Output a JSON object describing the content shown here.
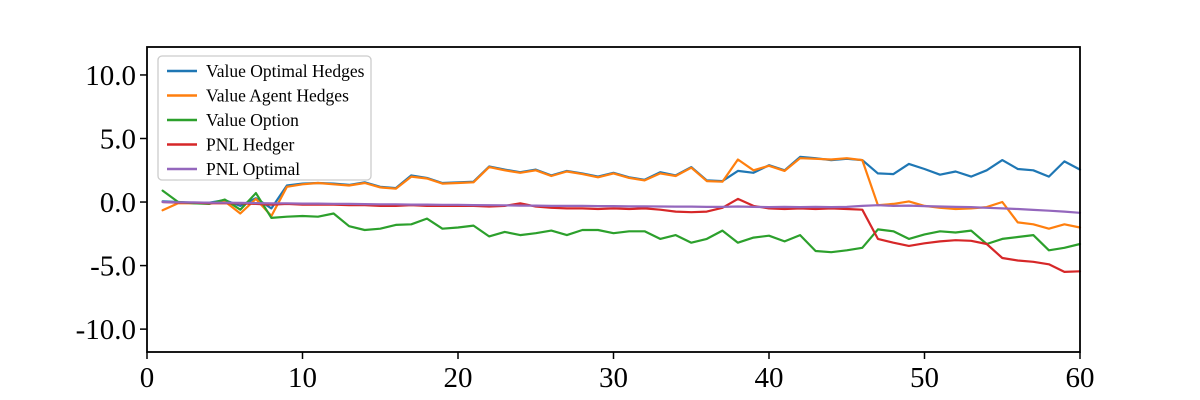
{
  "chart_data": {
    "type": "line",
    "title": "",
    "xlabel": "",
    "ylabel": "",
    "x_start": 1,
    "x_step": 1,
    "axes": {
      "xlim": [
        0,
        60
      ],
      "ylim": [
        -11.8,
        12.2
      ],
      "xticks": [
        0,
        10,
        20,
        30,
        40,
        50,
        60
      ],
      "xtick_labels": [
        "0",
        "10",
        "20",
        "30",
        "40",
        "50",
        "60"
      ],
      "yticks": [
        10,
        5,
        0,
        -5,
        -10
      ],
      "ytick_labels": [
        "10.0",
        "5.0",
        "0.0",
        "-5.0",
        "-10.0"
      ],
      "grid": false
    },
    "legend": {
      "position": "upper-left",
      "entries": [
        "Value Optimal Hedges",
        "Value Agent Hedges",
        "Value Option",
        "PNL Hedger",
        "PNL Optimal"
      ]
    },
    "series": [
      {
        "name": "Value Optimal Hedges",
        "color": "#1f77b4",
        "values": [
          0.05,
          0.0,
          -0.05,
          -0.05,
          0.15,
          -0.3,
          0.3,
          -0.5,
          1.3,
          1.45,
          1.5,
          1.45,
          1.35,
          1.55,
          1.2,
          1.1,
          2.1,
          1.9,
          1.5,
          1.55,
          1.6,
          2.8,
          2.55,
          2.35,
          2.55,
          2.1,
          2.45,
          2.25,
          2.0,
          2.3,
          1.95,
          1.75,
          2.35,
          2.1,
          2.75,
          1.7,
          1.65,
          2.45,
          2.3,
          2.9,
          2.5,
          3.55,
          3.45,
          3.3,
          3.4,
          3.3,
          2.25,
          2.2,
          3.0,
          2.6,
          2.15,
          2.4,
          2.0,
          2.5,
          3.3,
          2.6,
          2.5,
          2.0,
          3.2,
          2.55
        ]
      },
      {
        "name": "Value Agent Hedges",
        "color": "#ff7f0e",
        "values": [
          -0.65,
          -0.1,
          -0.1,
          -0.1,
          0.05,
          -0.9,
          0.25,
          -1.1,
          1.2,
          1.4,
          1.5,
          1.4,
          1.3,
          1.5,
          1.15,
          1.05,
          2.0,
          1.85,
          1.45,
          1.5,
          1.55,
          2.75,
          2.5,
          2.3,
          2.5,
          2.05,
          2.4,
          2.2,
          1.95,
          2.25,
          1.9,
          1.7,
          2.25,
          2.05,
          2.7,
          1.65,
          1.6,
          3.35,
          2.5,
          2.85,
          2.45,
          3.45,
          3.4,
          3.35,
          3.45,
          3.3,
          -0.25,
          -0.15,
          0.05,
          -0.3,
          -0.45,
          -0.55,
          -0.5,
          -0.4,
          0.0,
          -1.6,
          -1.75,
          -2.1,
          -1.75,
          -2.0
        ]
      },
      {
        "name": "Value Option",
        "color": "#2ca02c",
        "values": [
          0.9,
          0.0,
          -0.1,
          -0.15,
          0.2,
          -0.6,
          0.7,
          -1.25,
          -1.15,
          -1.1,
          -1.15,
          -0.9,
          -1.9,
          -2.2,
          -2.1,
          -1.8,
          -1.75,
          -1.3,
          -2.1,
          -2.0,
          -1.85,
          -2.7,
          -2.35,
          -2.6,
          -2.45,
          -2.25,
          -2.6,
          -2.2,
          -2.2,
          -2.45,
          -2.3,
          -2.3,
          -2.9,
          -2.6,
          -3.2,
          -2.9,
          -2.25,
          -3.2,
          -2.8,
          -2.65,
          -3.1,
          -2.6,
          -3.85,
          -3.95,
          -3.8,
          -3.6,
          -2.15,
          -2.3,
          -2.9,
          -2.55,
          -2.3,
          -2.4,
          -2.25,
          -3.3,
          -2.9,
          -2.75,
          -2.6,
          -3.8,
          -3.6,
          -3.3
        ]
      },
      {
        "name": "PNL Hedger",
        "color": "#d62728",
        "values": [
          0.0,
          -0.05,
          -0.05,
          -0.1,
          -0.1,
          -0.1,
          -0.15,
          -0.2,
          -0.15,
          -0.2,
          -0.2,
          -0.2,
          -0.25,
          -0.25,
          -0.3,
          -0.3,
          -0.25,
          -0.3,
          -0.3,
          -0.3,
          -0.3,
          -0.35,
          -0.3,
          -0.1,
          -0.35,
          -0.45,
          -0.5,
          -0.5,
          -0.55,
          -0.5,
          -0.55,
          -0.5,
          -0.6,
          -0.75,
          -0.8,
          -0.75,
          -0.45,
          0.25,
          -0.3,
          -0.5,
          -0.55,
          -0.5,
          -0.55,
          -0.5,
          -0.55,
          -0.6,
          -2.9,
          -3.2,
          -3.45,
          -3.25,
          -3.1,
          -3.0,
          -3.05,
          -3.3,
          -4.4,
          -4.6,
          -4.7,
          -4.9,
          -5.5,
          -5.45
        ]
      },
      {
        "name": "PNL Optimal",
        "color": "#9467bd",
        "values": [
          0.0,
          -0.02,
          -0.03,
          -0.05,
          -0.05,
          -0.06,
          -0.08,
          -0.1,
          -0.1,
          -0.12,
          -0.12,
          -0.14,
          -0.15,
          -0.16,
          -0.18,
          -0.18,
          -0.2,
          -0.2,
          -0.22,
          -0.22,
          -0.24,
          -0.25,
          -0.26,
          -0.28,
          -0.28,
          -0.3,
          -0.3,
          -0.3,
          -0.32,
          -0.32,
          -0.34,
          -0.34,
          -0.35,
          -0.36,
          -0.36,
          -0.38,
          -0.38,
          -0.35,
          -0.38,
          -0.4,
          -0.38,
          -0.4,
          -0.38,
          -0.4,
          -0.38,
          -0.3,
          -0.25,
          -0.3,
          -0.28,
          -0.32,
          -0.35,
          -0.38,
          -0.4,
          -0.45,
          -0.5,
          -0.55,
          -0.62,
          -0.68,
          -0.75,
          -0.85
        ]
      }
    ]
  },
  "colors": {
    "background": "#ffffff",
    "axis": "#000000",
    "tick_label": "#000000",
    "legend_border": "#cccccc",
    "legend_background": "rgba(255,255,255,0.8)"
  }
}
